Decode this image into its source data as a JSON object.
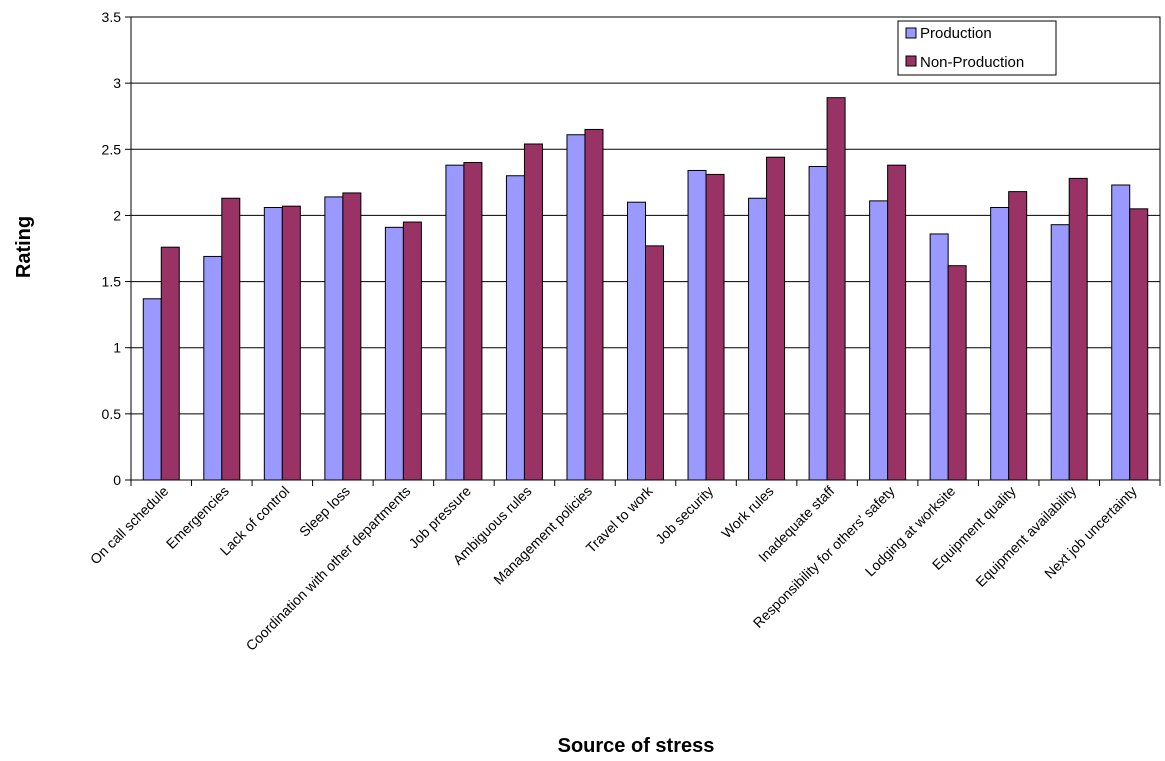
{
  "chart_data": {
    "type": "bar",
    "title": "",
    "xlabel": "Source of stress",
    "ylabel": "Rating",
    "ylim": [
      0,
      3.5
    ],
    "yticks": [
      0,
      0.5,
      1,
      1.5,
      2,
      2.5,
      3,
      3.5
    ],
    "ytick_labels": [
      "0",
      "0.5",
      "1",
      "1.5",
      "2",
      "2.5",
      "3",
      "3.5"
    ],
    "grid": "horizontal",
    "legend_position": "top-right",
    "categories": [
      "On call schedule",
      "Emergencies",
      "Lack of control",
      "Sleep loss",
      "Coordination with other departments",
      "Job pressure",
      "Ambiguous rules",
      "Management policies",
      "Travel to work",
      "Job security",
      "Work rules",
      "Inadequate staff",
      "Responsibility for others' safety",
      "Lodging at worksite",
      "Equipment quality",
      "Equipment availability",
      "Next job uncertainty"
    ],
    "series": [
      {
        "name": "Production",
        "color": "#9999ff",
        "values": [
          1.37,
          1.69,
          2.06,
          2.14,
          1.91,
          2.38,
          2.3,
          2.61,
          2.1,
          2.34,
          2.13,
          2.37,
          2.11,
          1.86,
          2.06,
          1.93,
          2.23
        ]
      },
      {
        "name": "Non-Production",
        "color": "#993366",
        "values": [
          1.76,
          2.13,
          2.07,
          2.17,
          1.95,
          2.4,
          2.54,
          2.65,
          1.77,
          2.31,
          2.44,
          2.89,
          2.38,
          1.62,
          2.18,
          2.28,
          2.05
        ]
      }
    ]
  }
}
